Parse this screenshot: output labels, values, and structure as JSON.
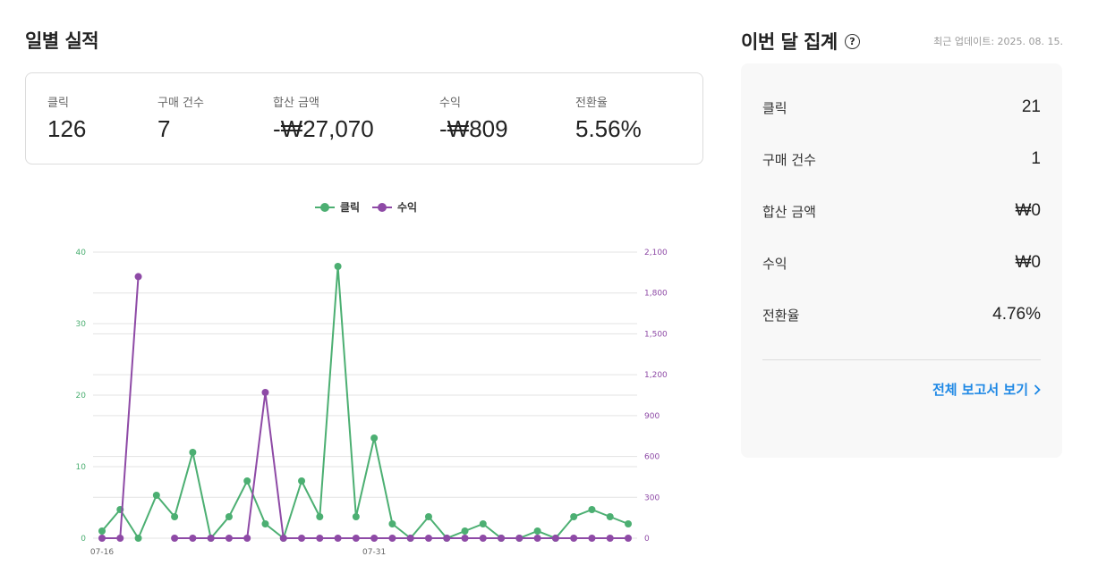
{
  "daily": {
    "title": "일별 실적",
    "stats": [
      {
        "label": "클릭",
        "value": "126"
      },
      {
        "label": "구매 건수",
        "value": "7"
      },
      {
        "label": "합산 금액",
        "value": "-₩27,070"
      },
      {
        "label": "수익",
        "value": "-₩809"
      },
      {
        "label": "전환율",
        "value": "5.56%"
      }
    ]
  },
  "month": {
    "title": "이번 달 집계",
    "help_icon": "question-circle-icon",
    "updated": "최근 업데이트: 2025. 08. 15.",
    "rows": [
      {
        "label": "클릭",
        "value": "21"
      },
      {
        "label": "구매 건수",
        "value": "1"
      },
      {
        "label": "합산 금액",
        "value": "₩0"
      },
      {
        "label": "수익",
        "value": "₩0"
      },
      {
        "label": "전환율",
        "value": "4.76%"
      }
    ],
    "report_link": "전체 보고서 보기"
  },
  "chart_data": {
    "type": "line",
    "x": [
      "07-16",
      "07-17",
      "07-18",
      "07-19",
      "07-20",
      "07-21",
      "07-22",
      "07-23",
      "07-24",
      "07-25",
      "07-26",
      "07-27",
      "07-28",
      "07-29",
      "07-30",
      "07-31",
      "08-01",
      "08-02",
      "08-03",
      "08-04",
      "08-05",
      "08-06",
      "08-07",
      "08-08",
      "08-09",
      "08-10",
      "08-11",
      "08-12",
      "08-13",
      "08-14"
    ],
    "x_tick_labels": [
      "07-16",
      "07-31"
    ],
    "series": [
      {
        "name": "클릭",
        "axis": "left",
        "color": "#4caf72",
        "values": [
          1,
          4,
          0,
          6,
          3,
          12,
          0,
          3,
          8,
          2,
          0,
          8,
          3,
          38,
          3,
          14,
          2,
          0,
          3,
          0,
          1,
          2,
          0,
          0,
          1,
          0,
          3,
          4,
          3,
          2
        ]
      },
      {
        "name": "수익",
        "axis": "right",
        "color": "#8e4aa6",
        "values": [
          0,
          0,
          1920,
          null,
          0,
          0,
          0,
          0,
          0,
          1070,
          0,
          0,
          0,
          0,
          0,
          0,
          0,
          0,
          0,
          0,
          0,
          0,
          0,
          0,
          0,
          0,
          0,
          0,
          0,
          0
        ]
      }
    ],
    "y_left": {
      "range": [
        0,
        40
      ],
      "ticks": [
        "0",
        "10",
        "20",
        "30",
        "40"
      ]
    },
    "y_right": {
      "range": [
        0,
        2100
      ],
      "ticks": [
        "0",
        "300",
        "600",
        "900",
        "1,200",
        "1,500",
        "1,800",
        "2,100"
      ]
    },
    "legend": "top-center",
    "grid": true
  }
}
